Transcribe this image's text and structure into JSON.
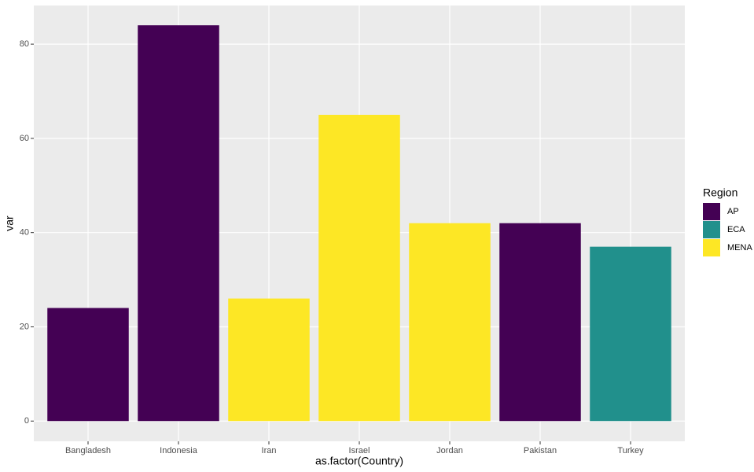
{
  "chart_data": {
    "type": "bar",
    "x_label": "as.factor(Country)",
    "y_label": "var",
    "categories": [
      "Bangladesh",
      "Indonesia",
      "Iran",
      "Israel",
      "Jordan",
      "Pakistan",
      "Turkey"
    ],
    "series": [
      {
        "name": "AP",
        "color": "#440154",
        "values": [
          24,
          84,
          null,
          null,
          null,
          42,
          null
        ]
      },
      {
        "name": "ECA",
        "color": "#21908C",
        "values": [
          null,
          null,
          null,
          null,
          null,
          null,
          37
        ]
      },
      {
        "name": "MENA",
        "color": "#FDE725",
        "values": [
          null,
          null,
          26,
          65,
          42,
          null,
          null
        ]
      }
    ],
    "legend_title": "Region",
    "ylim": [
      -4.3,
      88.2
    ],
    "yticks": [
      0,
      20,
      40,
      60,
      80
    ],
    "grid": true
  }
}
